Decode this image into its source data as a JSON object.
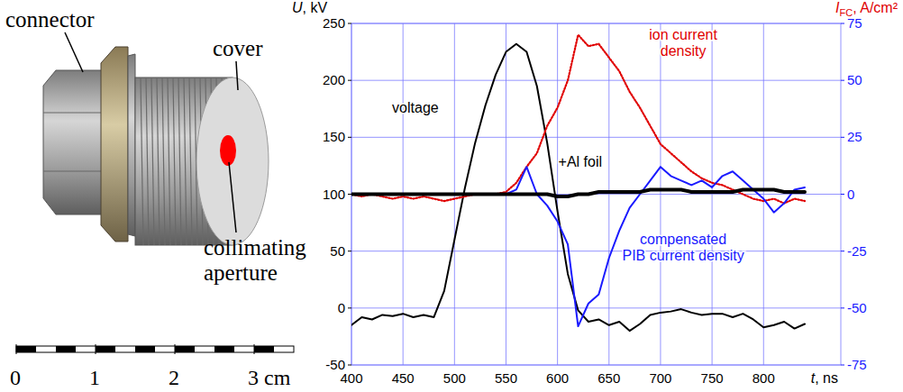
{
  "chart_data": {
    "type": "line",
    "ylabel": "U, kV",
    "y2label": {
      "symbol": "I",
      "subscript": "FC",
      "unit": ", A/cm²"
    },
    "xlabel": "t, ns",
    "xlim": [
      400,
      875
    ],
    "xticks": [
      400,
      450,
      500,
      550,
      600,
      650,
      700,
      750,
      800
    ],
    "ylim": [
      -50,
      250
    ],
    "yticks": [
      -50,
      0,
      50,
      100,
      150,
      200,
      250
    ],
    "y2lim": [
      -75,
      75
    ],
    "y2ticks": [
      -75,
      -50,
      -25,
      0,
      25,
      50,
      75
    ],
    "grid": true,
    "x": [
      400,
      410,
      420,
      430,
      440,
      450,
      460,
      470,
      480,
      490,
      500,
      510,
      520,
      530,
      540,
      550,
      560,
      570,
      580,
      590,
      600,
      610,
      620,
      630,
      640,
      650,
      660,
      670,
      680,
      690,
      700,
      710,
      720,
      730,
      740,
      750,
      760,
      770,
      780,
      790,
      800,
      810,
      820,
      830,
      840
    ],
    "series": [
      {
        "color": "#000000",
        "line_style": "solid",
        "values": [
          -15,
          -8,
          -10,
          -6,
          -7,
          -5,
          -8,
          -6,
          -8,
          15,
          60,
          105,
          145,
          178,
          205,
          225,
          232,
          225,
          195,
          145,
          85,
          30,
          -2,
          -12,
          -10,
          -15,
          -12,
          -20,
          -14,
          -6,
          -4,
          -3,
          -1,
          -4,
          -6,
          -5,
          -5,
          -8,
          -5,
          -10,
          -17,
          -15,
          -12,
          -18,
          -14
        ]
      },
      {
        "color": "#e00000",
        "line_style": "dotted",
        "axis": "y2",
        "values": [
          0,
          -1,
          0,
          -1,
          -2,
          -1,
          -2,
          -1,
          -2,
          -3,
          -2,
          -1,
          0,
          0,
          0,
          1,
          5,
          12,
          18,
          30,
          38,
          50,
          70,
          65,
          66,
          60,
          54,
          45,
          38,
          30,
          22,
          18,
          14,
          10,
          7,
          5,
          4,
          2,
          0,
          -2,
          -3,
          -2,
          -4,
          -2,
          -3
        ]
      },
      {
        "color": "#1a1aff",
        "line_style": "solid",
        "axis": "y2",
        "values": [
          0,
          0,
          0,
          0,
          0,
          0,
          0,
          0,
          0,
          0,
          0,
          0,
          0,
          0,
          0,
          0,
          2,
          12,
          0,
          -5,
          -12,
          -22,
          -58,
          -48,
          -44,
          -28,
          -16,
          -6,
          0,
          6,
          12,
          8,
          6,
          4,
          6,
          3,
          8,
          10,
          6,
          2,
          -2,
          -8,
          -4,
          2,
          3
        ]
      },
      {
        "color": "#000000",
        "line_style": "thick",
        "axis": "y2",
        "values": [
          0,
          0,
          0,
          0,
          0,
          0,
          0,
          0,
          0,
          0,
          0,
          0,
          0,
          0,
          0,
          0,
          0,
          0,
          0,
          0,
          -1,
          -1,
          0,
          0,
          1,
          1,
          1,
          1,
          1,
          2,
          2,
          2,
          2,
          1,
          1,
          1,
          1,
          1,
          2,
          2,
          2,
          2,
          1,
          1,
          1
        ]
      }
    ],
    "annotations": [
      {
        "text": [
          "voltage"
        ],
        "x": 462,
        "y": 172,
        "color": "#000000"
      },
      {
        "text": [
          "ion current",
          "density"
        ],
        "x": 722,
        "y": 236,
        "color": "#e00000"
      },
      {
        "text": [
          "+Al foil"
        ],
        "x": 622,
        "y": 124,
        "color": "#000000"
      },
      {
        "text": [
          "compensated",
          "PIB current density"
        ],
        "x": 722,
        "y": 56,
        "color": "#1a1aff"
      }
    ]
  },
  "photo": {
    "labels": [
      {
        "text": [
          "connector"
        ]
      },
      {
        "text": [
          "cover"
        ]
      },
      {
        "text": [
          "collimating",
          "aperture"
        ]
      }
    ],
    "scale": {
      "lim": [
        0,
        3.5
      ],
      "ticks": [
        0,
        1,
        2,
        {
          "value": 3,
          "label": "3 cm"
        }
      ]
    }
  }
}
